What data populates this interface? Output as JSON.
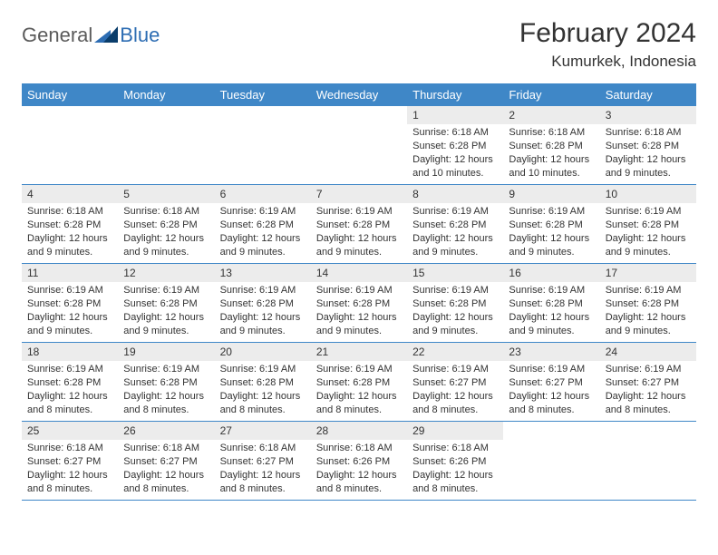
{
  "brand": {
    "part1": "General",
    "part2": "Blue"
  },
  "title": "February 2024",
  "location": "Kumurkek, Indonesia",
  "colors": {
    "header_bg": "#3f87c7",
    "header_text": "#ffffff",
    "daynum_bg": "#ececec",
    "rule": "#3f87c7",
    "text": "#333333",
    "brand_gray": "#5b5b5b",
    "brand_blue": "#2d6db3",
    "logo_dark": "#0a3d6b",
    "logo_mid": "#2d6db3"
  },
  "weekdays": [
    "Sunday",
    "Monday",
    "Tuesday",
    "Wednesday",
    "Thursday",
    "Friday",
    "Saturday"
  ],
  "weeks": [
    [
      {
        "n": "",
        "sr": "",
        "ss": "",
        "dl": ""
      },
      {
        "n": "",
        "sr": "",
        "ss": "",
        "dl": ""
      },
      {
        "n": "",
        "sr": "",
        "ss": "",
        "dl": ""
      },
      {
        "n": "",
        "sr": "",
        "ss": "",
        "dl": ""
      },
      {
        "n": "1",
        "sr": "Sunrise: 6:18 AM",
        "ss": "Sunset: 6:28 PM",
        "dl": "Daylight: 12 hours and 10 minutes."
      },
      {
        "n": "2",
        "sr": "Sunrise: 6:18 AM",
        "ss": "Sunset: 6:28 PM",
        "dl": "Daylight: 12 hours and 10 minutes."
      },
      {
        "n": "3",
        "sr": "Sunrise: 6:18 AM",
        "ss": "Sunset: 6:28 PM",
        "dl": "Daylight: 12 hours and 9 minutes."
      }
    ],
    [
      {
        "n": "4",
        "sr": "Sunrise: 6:18 AM",
        "ss": "Sunset: 6:28 PM",
        "dl": "Daylight: 12 hours and 9 minutes."
      },
      {
        "n": "5",
        "sr": "Sunrise: 6:18 AM",
        "ss": "Sunset: 6:28 PM",
        "dl": "Daylight: 12 hours and 9 minutes."
      },
      {
        "n": "6",
        "sr": "Sunrise: 6:19 AM",
        "ss": "Sunset: 6:28 PM",
        "dl": "Daylight: 12 hours and 9 minutes."
      },
      {
        "n": "7",
        "sr": "Sunrise: 6:19 AM",
        "ss": "Sunset: 6:28 PM",
        "dl": "Daylight: 12 hours and 9 minutes."
      },
      {
        "n": "8",
        "sr": "Sunrise: 6:19 AM",
        "ss": "Sunset: 6:28 PM",
        "dl": "Daylight: 12 hours and 9 minutes."
      },
      {
        "n": "9",
        "sr": "Sunrise: 6:19 AM",
        "ss": "Sunset: 6:28 PM",
        "dl": "Daylight: 12 hours and 9 minutes."
      },
      {
        "n": "10",
        "sr": "Sunrise: 6:19 AM",
        "ss": "Sunset: 6:28 PM",
        "dl": "Daylight: 12 hours and 9 minutes."
      }
    ],
    [
      {
        "n": "11",
        "sr": "Sunrise: 6:19 AM",
        "ss": "Sunset: 6:28 PM",
        "dl": "Daylight: 12 hours and 9 minutes."
      },
      {
        "n": "12",
        "sr": "Sunrise: 6:19 AM",
        "ss": "Sunset: 6:28 PM",
        "dl": "Daylight: 12 hours and 9 minutes."
      },
      {
        "n": "13",
        "sr": "Sunrise: 6:19 AM",
        "ss": "Sunset: 6:28 PM",
        "dl": "Daylight: 12 hours and 9 minutes."
      },
      {
        "n": "14",
        "sr": "Sunrise: 6:19 AM",
        "ss": "Sunset: 6:28 PM",
        "dl": "Daylight: 12 hours and 9 minutes."
      },
      {
        "n": "15",
        "sr": "Sunrise: 6:19 AM",
        "ss": "Sunset: 6:28 PM",
        "dl": "Daylight: 12 hours and 9 minutes."
      },
      {
        "n": "16",
        "sr": "Sunrise: 6:19 AM",
        "ss": "Sunset: 6:28 PM",
        "dl": "Daylight: 12 hours and 9 minutes."
      },
      {
        "n": "17",
        "sr": "Sunrise: 6:19 AM",
        "ss": "Sunset: 6:28 PM",
        "dl": "Daylight: 12 hours and 9 minutes."
      }
    ],
    [
      {
        "n": "18",
        "sr": "Sunrise: 6:19 AM",
        "ss": "Sunset: 6:28 PM",
        "dl": "Daylight: 12 hours and 8 minutes."
      },
      {
        "n": "19",
        "sr": "Sunrise: 6:19 AM",
        "ss": "Sunset: 6:28 PM",
        "dl": "Daylight: 12 hours and 8 minutes."
      },
      {
        "n": "20",
        "sr": "Sunrise: 6:19 AM",
        "ss": "Sunset: 6:28 PM",
        "dl": "Daylight: 12 hours and 8 minutes."
      },
      {
        "n": "21",
        "sr": "Sunrise: 6:19 AM",
        "ss": "Sunset: 6:28 PM",
        "dl": "Daylight: 12 hours and 8 minutes."
      },
      {
        "n": "22",
        "sr": "Sunrise: 6:19 AM",
        "ss": "Sunset: 6:27 PM",
        "dl": "Daylight: 12 hours and 8 minutes."
      },
      {
        "n": "23",
        "sr": "Sunrise: 6:19 AM",
        "ss": "Sunset: 6:27 PM",
        "dl": "Daylight: 12 hours and 8 minutes."
      },
      {
        "n": "24",
        "sr": "Sunrise: 6:19 AM",
        "ss": "Sunset: 6:27 PM",
        "dl": "Daylight: 12 hours and 8 minutes."
      }
    ],
    [
      {
        "n": "25",
        "sr": "Sunrise: 6:18 AM",
        "ss": "Sunset: 6:27 PM",
        "dl": "Daylight: 12 hours and 8 minutes."
      },
      {
        "n": "26",
        "sr": "Sunrise: 6:18 AM",
        "ss": "Sunset: 6:27 PM",
        "dl": "Daylight: 12 hours and 8 minutes."
      },
      {
        "n": "27",
        "sr": "Sunrise: 6:18 AM",
        "ss": "Sunset: 6:27 PM",
        "dl": "Daylight: 12 hours and 8 minutes."
      },
      {
        "n": "28",
        "sr": "Sunrise: 6:18 AM",
        "ss": "Sunset: 6:26 PM",
        "dl": "Daylight: 12 hours and 8 minutes."
      },
      {
        "n": "29",
        "sr": "Sunrise: 6:18 AM",
        "ss": "Sunset: 6:26 PM",
        "dl": "Daylight: 12 hours and 8 minutes."
      },
      {
        "n": "",
        "sr": "",
        "ss": "",
        "dl": ""
      },
      {
        "n": "",
        "sr": "",
        "ss": "",
        "dl": ""
      }
    ]
  ]
}
